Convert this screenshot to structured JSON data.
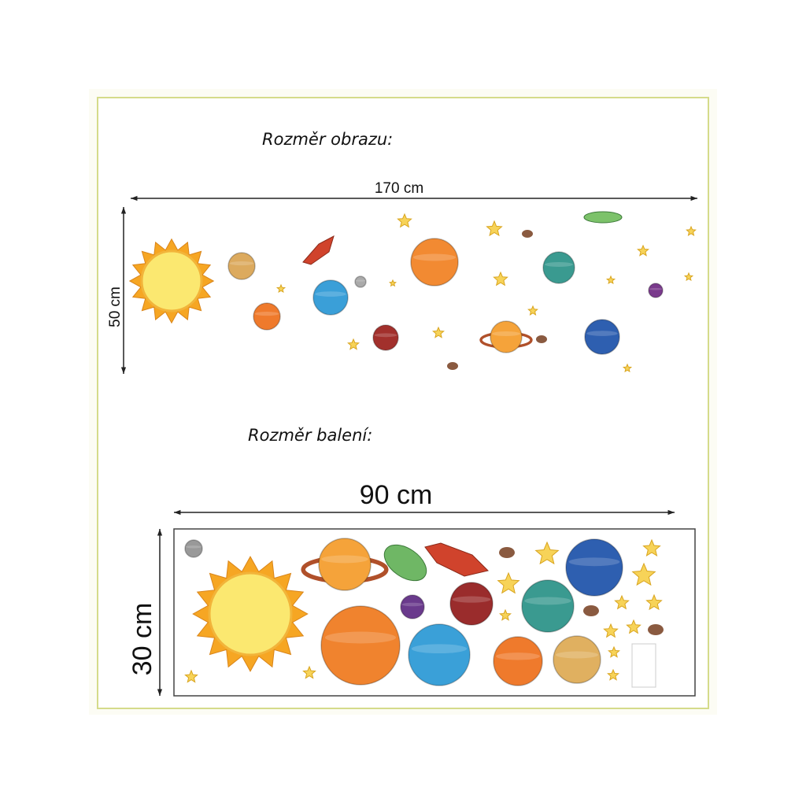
{
  "picture": {
    "heading": "Rozměr obrazu:",
    "width": "170 cm",
    "height": "50 cm"
  },
  "package": {
    "heading": "Rozměr balení:",
    "width": "90 cm",
    "height": "30 cm"
  }
}
